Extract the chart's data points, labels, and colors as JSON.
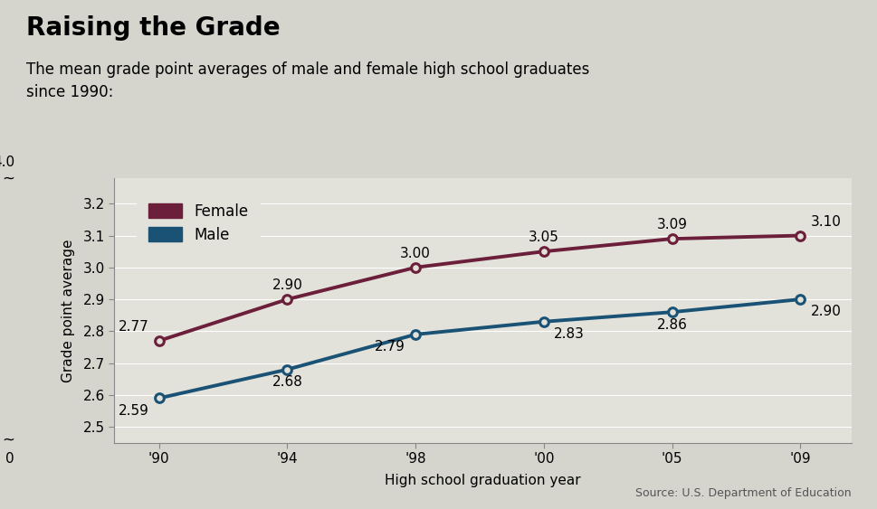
{
  "title": "Raising the Grade",
  "subtitle": "The mean grade point averages of male and female high school graduates\nsince 1990:",
  "xlabel": "High school graduation year",
  "ylabel": "Grade point average",
  "source": "Source: U.S. Department of Education",
  "x_labels": [
    "'90",
    "'94",
    "'98",
    "'00",
    "'05",
    "'09"
  ],
  "x_positions": [
    0,
    1,
    2,
    3,
    4,
    5
  ],
  "female_values": [
    2.77,
    2.9,
    3.0,
    3.05,
    3.09,
    3.1
  ],
  "male_values": [
    2.59,
    2.68,
    2.79,
    2.83,
    2.86,
    2.9
  ],
  "female_color": "#6B1F3A",
  "male_color": "#1A5276",
  "background_color": "#D5D5CE",
  "plot_bg_color": "#E2E2DA",
  "title_fontsize": 20,
  "subtitle_fontsize": 12,
  "label_fontsize": 11,
  "tick_fontsize": 11,
  "annotation_fontsize": 11,
  "legend_fontsize": 12,
  "ytick_positions": [
    2.5,
    2.6,
    2.7,
    2.8,
    2.9,
    3.0,
    3.1,
    3.2
  ],
  "ytick_labels": [
    "2.5",
    "2.6",
    "2.7",
    "2.8",
    "2.9",
    "3.0",
    "3.1",
    "3.2"
  ],
  "ymin": 2.45,
  "ymax": 3.28,
  "xlim_min": -0.35,
  "xlim_max": 5.4
}
